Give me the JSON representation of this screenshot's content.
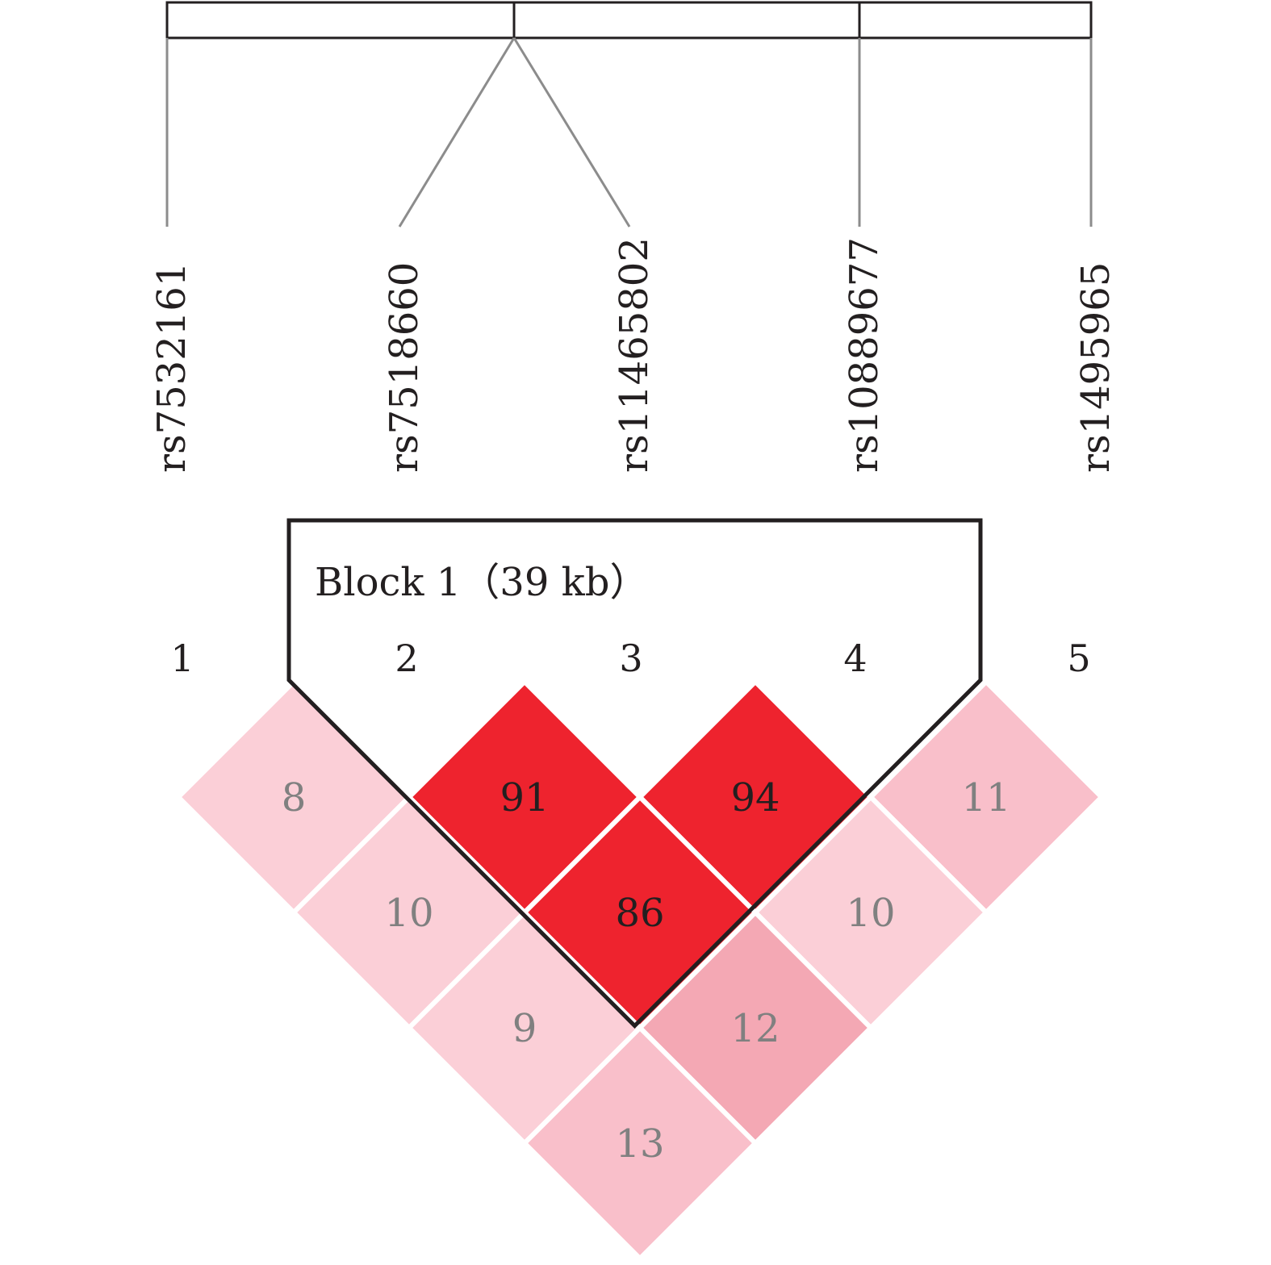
{
  "markers": [
    {
      "index": "1",
      "name": "rs7532161"
    },
    {
      "index": "2",
      "name": "rs7518660"
    },
    {
      "index": "3",
      "name": "rs11465802"
    },
    {
      "index": "4",
      "name": "rs10889677"
    },
    {
      "index": "5",
      "name": "rs1495965"
    }
  ],
  "block": {
    "label": "Block 1（39 kb）",
    "first_marker": 2,
    "last_marker": 4
  },
  "ld_values": [
    {
      "pair": [
        1,
        2
      ],
      "value": 8,
      "color": "#fbcfd7",
      "text_color": "#808080"
    },
    {
      "pair": [
        2,
        3
      ],
      "value": 91,
      "color": "#ee232e",
      "text_color": "#231f20"
    },
    {
      "pair": [
        3,
        4
      ],
      "value": 94,
      "color": "#ee232e",
      "text_color": "#231f20"
    },
    {
      "pair": [
        4,
        5
      ],
      "value": 11,
      "color": "#f9bfca",
      "text_color": "#808080"
    },
    {
      "pair": [
        1,
        3
      ],
      "value": 10,
      "color": "#fbcfd7",
      "text_color": "#808080"
    },
    {
      "pair": [
        2,
        4
      ],
      "value": 86,
      "color": "#ee232e",
      "text_color": "#231f20"
    },
    {
      "pair": [
        3,
        5
      ],
      "value": 10,
      "color": "#fbcfd7",
      "text_color": "#808080"
    },
    {
      "pair": [
        1,
        4
      ],
      "value": 9,
      "color": "#fbcfd7",
      "text_color": "#808080"
    },
    {
      "pair": [
        2,
        5
      ],
      "value": 12,
      "color": "#f4a8b4",
      "text_color": "#808080"
    },
    {
      "pair": [
        1,
        5
      ],
      "value": 13,
      "color": "#f9bfca",
      "text_color": "#808080"
    }
  ],
  "colors": {
    "block_outline": "#231f20",
    "connector": "#8c8c8c",
    "ruler": "#231f20"
  }
}
